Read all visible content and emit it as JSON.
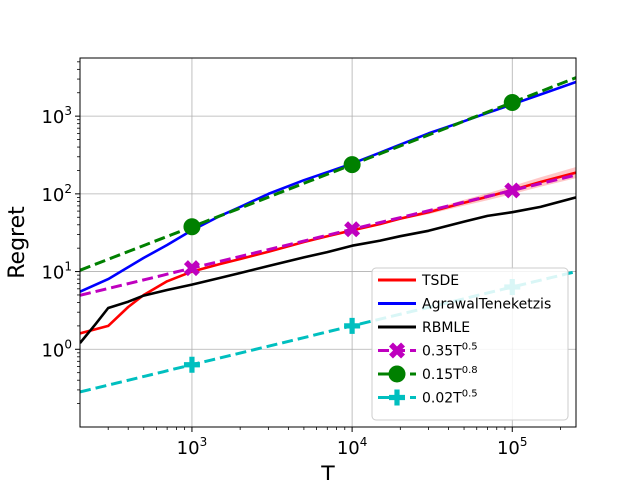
{
  "chart_data": {
    "type": "line",
    "xscale": "log",
    "yscale": "log",
    "xlabel": "T",
    "ylabel": "Regret",
    "xlim": [
      200,
      250000
    ],
    "ylim": [
      0.1,
      5600
    ],
    "grid": true,
    "legend_position": "lower-right",
    "x_ticks": [
      {
        "value": 1000,
        "base": "10",
        "exp": "3"
      },
      {
        "value": 10000,
        "base": "10",
        "exp": "4"
      },
      {
        "value": 100000,
        "base": "10",
        "exp": "5"
      }
    ],
    "y_ticks": [
      {
        "value": 1,
        "base": "10",
        "exp": "0"
      },
      {
        "value": 10,
        "base": "10",
        "exp": "1"
      },
      {
        "value": 100,
        "base": "10",
        "exp": "2"
      },
      {
        "value": 1000,
        "base": "10",
        "exp": "3"
      }
    ],
    "series": [
      {
        "name": "TSDE",
        "style": "solid",
        "color": "#ff0000",
        "band": true,
        "x": [
          200,
          300,
          400,
          500,
          700,
          1000,
          1500,
          2000,
          3000,
          5000,
          7000,
          10000,
          15000,
          20000,
          30000,
          50000,
          70000,
          100000,
          150000,
          250000
        ],
        "y": [
          1.6,
          2.0,
          3.5,
          5.0,
          7.5,
          10.0,
          12.5,
          14.5,
          18.0,
          24.0,
          28.5,
          34.0,
          41.0,
          48.0,
          58.0,
          77.0,
          92.0,
          112.0,
          142.0,
          188.0
        ]
      },
      {
        "name": "AgrawalTeneketzis",
        "style": "solid",
        "color": "#0000ff",
        "x": [
          200,
          300,
          500,
          700,
          1000,
          1500,
          2000,
          3000,
          5000,
          7000,
          10000,
          15000,
          20000,
          30000,
          50000,
          70000,
          100000,
          150000,
          250000
        ],
        "y": [
          5.5,
          8.0,
          15.0,
          22.0,
          34.0,
          52.0,
          68.0,
          100.0,
          150.0,
          190.0,
          245.0,
          340.0,
          430.0,
          600.0,
          860.0,
          1100.0,
          1420.0,
          1900.0,
          2750.0
        ]
      },
      {
        "name": "RBMLE",
        "style": "solid",
        "color": "#000000",
        "x": [
          200,
          250,
          300,
          400,
          500,
          700,
          1000,
          1500,
          2000,
          3000,
          5000,
          7000,
          10000,
          15000,
          20000,
          30000,
          50000,
          70000,
          100000,
          150000,
          250000
        ],
        "y": [
          1.2,
          2.1,
          3.4,
          4.1,
          4.9,
          5.8,
          6.8,
          8.3,
          9.6,
          11.8,
          15.2,
          17.8,
          21.5,
          25.0,
          28.5,
          33.5,
          44.0,
          52.0,
          58.0,
          68.0,
          90.0
        ]
      },
      {
        "name": "0.35T^0.5",
        "label_base": "0.35T",
        "label_exp": "0.5",
        "style": "dashed",
        "color": "#bf00bf",
        "marker": "x-cross",
        "marker_x": [
          1000,
          10000,
          100000
        ],
        "coef": 0.35,
        "power": 0.5
      },
      {
        "name": "0.15T^0.8",
        "label_base": "0.15T",
        "label_exp": "0.8",
        "style": "dashed",
        "color": "#008000",
        "marker": "circle",
        "marker_x": [
          1000,
          10000,
          100000
        ],
        "coef": 0.15,
        "power": 0.8
      },
      {
        "name": "0.02T^0.5",
        "label_base": "0.02T",
        "label_exp": "0.5",
        "style": "dashed",
        "color": "#00bfbf",
        "marker": "plus",
        "marker_x": [
          1000,
          10000,
          100000
        ],
        "coef": 0.02,
        "power": 0.5
      }
    ]
  }
}
